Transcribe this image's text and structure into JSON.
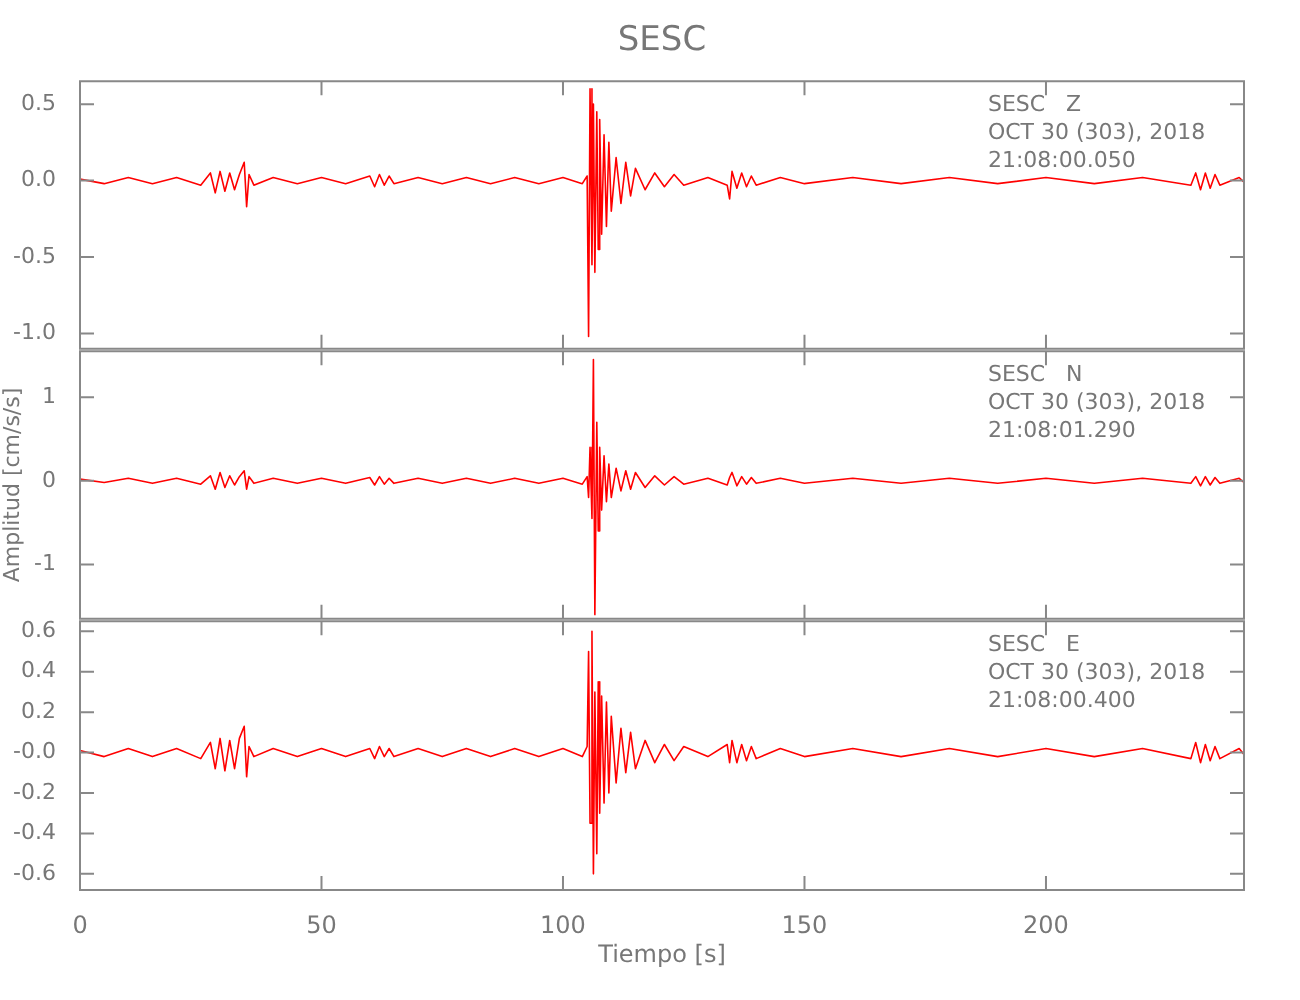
{
  "chart_data": [
    {
      "type": "line",
      "title": "SESC",
      "x": [
        0,
        5,
        10,
        15,
        20,
        25,
        27,
        28,
        29,
        30,
        31,
        32,
        33,
        34,
        34.5,
        35,
        36,
        40,
        45,
        50,
        55,
        60,
        61,
        62,
        63,
        64,
        65,
        70,
        75,
        80,
        85,
        90,
        95,
        100,
        104,
        105,
        105.3,
        105.6,
        106,
        106.3,
        106.6,
        107,
        107.3,
        107.6,
        108,
        108.5,
        109,
        109.5,
        110,
        111,
        112,
        113,
        114,
        115,
        117,
        119,
        121,
        123,
        125,
        130,
        134,
        134.5,
        135,
        136,
        137,
        138,
        139,
        140,
        145,
        150,
        160,
        170,
        180,
        190,
        200,
        210,
        220,
        230,
        231,
        232,
        233,
        234,
        235,
        236,
        240,
        241
      ],
      "series": [
        {
          "color": "#ff0000",
          "values": [
            0.01,
            -0.02,
            0.02,
            -0.02,
            0.02,
            -0.03,
            0.05,
            -0.08,
            0.06,
            -0.07,
            0.05,
            -0.06,
            0.04,
            0.12,
            -0.17,
            0.04,
            -0.03,
            0.02,
            -0.02,
            0.02,
            -0.02,
            0.03,
            -0.04,
            0.04,
            -0.03,
            0.03,
            -0.02,
            0.02,
            -0.02,
            0.02,
            -0.02,
            0.02,
            -0.02,
            0.02,
            -0.02,
            0.03,
            -1.02,
            0.6,
            -0.55,
            0.5,
            -0.6,
            0.45,
            -0.45,
            0.4,
            -0.35,
            0.3,
            -0.3,
            0.25,
            -0.2,
            0.15,
            -0.15,
            0.12,
            -0.1,
            0.08,
            -0.06,
            0.05,
            -0.04,
            0.04,
            -0.03,
            0.02,
            -0.03,
            -0.12,
            0.06,
            -0.05,
            0.05,
            -0.04,
            0.03,
            -0.03,
            0.02,
            -0.02,
            0.02,
            -0.02,
            0.02,
            -0.02,
            0.02,
            -0.02,
            0.02,
            -0.03,
            0.05,
            -0.06,
            0.05,
            -0.05,
            0.04,
            -0.03,
            0.02,
            -0.01
          ]
        }
      ],
      "xlim": [
        0,
        241
      ],
      "xticks": [
        0,
        50,
        100,
        150,
        200
      ],
      "ylim": [
        -1.1,
        0.65
      ],
      "yticks": [
        {
          "value": 0.5,
          "label": "0.5"
        },
        {
          "value": 0,
          "label": "0.0"
        },
        {
          "value": -0.5,
          "label": "-0.5"
        },
        {
          "value": -1,
          "label": "-1.0"
        }
      ],
      "tick_labels": "y",
      "annotations": [
        "SESC   Z",
        "OCT 30 (303), 2018",
        "21:08:00.050"
      ]
    },
    {
      "type": "line",
      "ylabel": "Amplitud [cm/s/s]",
      "x": [
        0,
        5,
        10,
        15,
        20,
        25,
        27,
        28,
        29,
        30,
        31,
        32,
        33,
        34,
        34.5,
        35,
        36,
        40,
        45,
        50,
        55,
        60,
        61,
        62,
        63,
        64,
        65,
        70,
        75,
        80,
        85,
        90,
        95,
        100,
        104,
        105,
        105.3,
        105.6,
        106,
        106.3,
        106.6,
        107,
        107.3,
        107.6,
        108,
        108.5,
        109,
        109.5,
        110,
        111,
        112,
        113,
        114,
        115,
        117,
        119,
        121,
        123,
        125,
        130,
        134,
        134.5,
        135,
        136,
        137,
        138,
        139,
        140,
        145,
        150,
        160,
        170,
        180,
        190,
        200,
        210,
        220,
        230,
        231,
        232,
        233,
        234,
        235,
        236,
        240,
        241
      ],
      "series": [
        {
          "color": "#ff0000",
          "values": [
            0.02,
            -0.02,
            0.03,
            -0.03,
            0.03,
            -0.04,
            0.06,
            -0.1,
            0.1,
            -0.08,
            0.06,
            -0.05,
            0.05,
            0.12,
            -0.1,
            0.05,
            -0.03,
            0.03,
            -0.03,
            0.03,
            -0.03,
            0.04,
            -0.05,
            0.05,
            -0.04,
            0.03,
            -0.03,
            0.03,
            -0.03,
            0.03,
            -0.03,
            0.03,
            -0.03,
            0.03,
            -0.04,
            0.05,
            -0.2,
            0.4,
            -0.45,
            1.45,
            -1.6,
            0.7,
            -0.6,
            0.4,
            -0.35,
            0.3,
            -0.25,
            0.2,
            -0.2,
            0.15,
            -0.12,
            0.12,
            -0.1,
            0.1,
            -0.08,
            0.06,
            -0.05,
            0.05,
            -0.04,
            0.03,
            -0.05,
            0.04,
            0.1,
            -0.06,
            0.05,
            -0.04,
            0.04,
            -0.03,
            0.03,
            -0.03,
            0.03,
            -0.03,
            0.03,
            -0.03,
            0.03,
            -0.03,
            0.03,
            -0.03,
            0.05,
            -0.06,
            0.05,
            -0.05,
            0.04,
            -0.03,
            0.03,
            -0.02
          ]
        }
      ],
      "xlim": [
        0,
        241
      ],
      "xticks": [
        0,
        50,
        100,
        150,
        200
      ],
      "ylim": [
        -1.65,
        1.55
      ],
      "yticks": [
        1,
        0,
        -1
      ],
      "tick_labels": "y",
      "annotations": [
        "SESC   N",
        "OCT 30 (303), 2018",
        "21:08:01.290"
      ]
    },
    {
      "type": "line",
      "xlabel": "Tiempo [s]",
      "x": [
        0,
        5,
        10,
        15,
        20,
        25,
        27,
        28,
        29,
        30,
        31,
        32,
        33,
        34,
        34.5,
        35,
        36,
        40,
        45,
        50,
        55,
        60,
        61,
        62,
        63,
        64,
        65,
        70,
        75,
        80,
        85,
        90,
        95,
        100,
        104,
        105,
        105.3,
        105.6,
        106,
        106.3,
        106.6,
        107,
        107.3,
        107.6,
        108,
        108.5,
        109,
        109.5,
        110,
        111,
        112,
        113,
        114,
        115,
        117,
        119,
        121,
        123,
        125,
        130,
        134,
        134.5,
        135,
        136,
        137,
        138,
        139,
        140,
        145,
        150,
        160,
        170,
        180,
        190,
        200,
        210,
        220,
        230,
        231,
        232,
        233,
        234,
        235,
        236,
        240,
        241
      ],
      "series": [
        {
          "color": "#ff0000",
          "values": [
            0.01,
            -0.02,
            0.02,
            -0.02,
            0.02,
            -0.03,
            0.05,
            -0.08,
            0.07,
            -0.09,
            0.06,
            -0.08,
            0.07,
            0.13,
            -0.12,
            0.03,
            -0.02,
            0.02,
            -0.02,
            0.02,
            -0.02,
            0.02,
            -0.03,
            0.03,
            -0.02,
            0.02,
            -0.02,
            0.02,
            -0.02,
            0.02,
            -0.02,
            0.02,
            -0.02,
            0.02,
            -0.02,
            0.03,
            0.5,
            -0.35,
            0.6,
            -0.6,
            0.3,
            -0.5,
            0.35,
            -0.3,
            0.28,
            -0.25,
            0.25,
            -0.2,
            0.18,
            -0.15,
            0.12,
            -0.1,
            0.1,
            -0.08,
            0.06,
            -0.05,
            0.04,
            -0.04,
            0.03,
            -0.02,
            0.04,
            -0.05,
            0.06,
            -0.05,
            0.04,
            -0.04,
            0.03,
            -0.03,
            0.02,
            -0.02,
            0.02,
            -0.02,
            0.02,
            -0.02,
            0.02,
            -0.02,
            0.02,
            -0.03,
            0.05,
            -0.05,
            0.04,
            -0.04,
            0.03,
            -0.03,
            0.02,
            -0.01
          ]
        }
      ],
      "xlim": [
        0,
        241
      ],
      "xticks": [
        0,
        50,
        100,
        150,
        200
      ],
      "ylim": [
        -0.68,
        0.65
      ],
      "yticks": [
        0.6,
        0.4,
        0.2,
        {
          "value": 0,
          "label": "-0.0"
        },
        -0.2,
        -0.4,
        -0.6
      ],
      "annotations": [
        "SESC   E",
        "OCT 30 (303), 2018",
        "21:08:00.400"
      ]
    }
  ]
}
